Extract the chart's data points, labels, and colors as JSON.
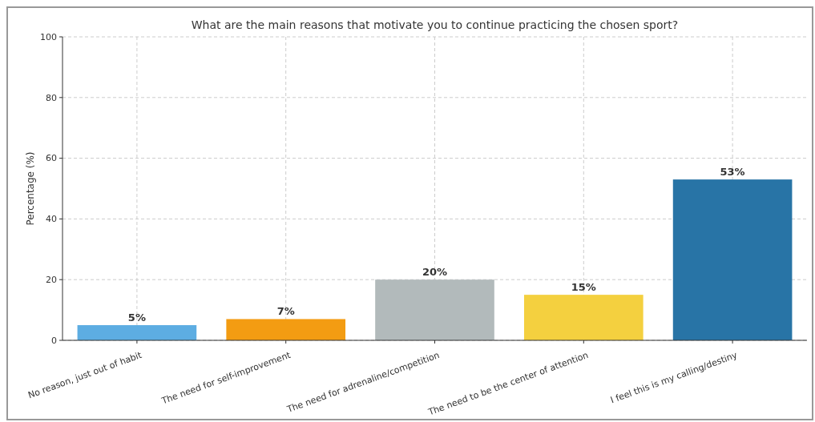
{
  "chart_data": {
    "type": "bar",
    "title": "What are the main reasons that motivate you to continue practicing the chosen sport?",
    "ylabel": "Percentage (%)",
    "categories": [
      "No reason, just out of habit",
      "The need for self-improvement",
      "The need for adrenaline/competition",
      "The need to be the center of attention",
      "I feel this is my calling/destiny"
    ],
    "values": [
      5,
      7,
      20,
      15,
      53
    ],
    "colors": [
      "#5dade2",
      "#f39c12",
      "#b2babb",
      "#f4d03f",
      "#2874a6"
    ],
    "value_labels": [
      "5%",
      "7%",
      "20%",
      "15%",
      "53%"
    ],
    "ylim": [
      0,
      100
    ],
    "yticks": [
      0,
      20,
      40,
      60,
      80,
      100
    ],
    "grid": true
  }
}
